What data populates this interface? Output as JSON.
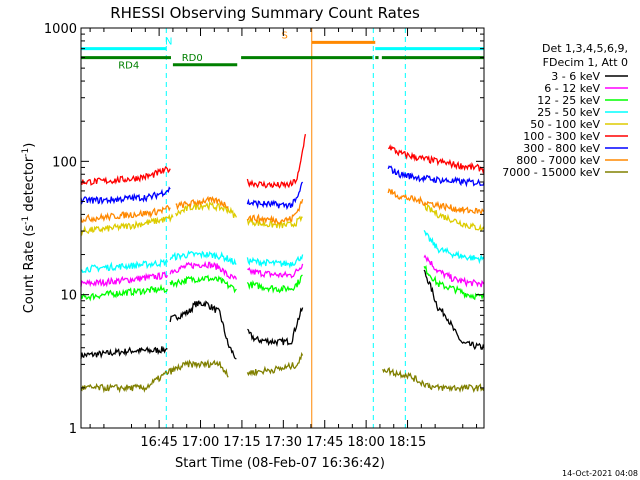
{
  "chart_data": {
    "type": "line",
    "title": "RHESSI Observing Summary Count Rates",
    "xlabel": "Start Time (08-Feb-07 16:36:42)",
    "ylabel_parts": [
      "Count Rate (s",
      "-1",
      " detector",
      "-1",
      ")"
    ],
    "ylabel": "Count Rate (s-1 detector-1)",
    "y_scale": "log",
    "ylim": [
      1,
      1000
    ],
    "y_ticks": [
      {
        "value": 1,
        "label": "1"
      },
      {
        "value": 10,
        "label": "10"
      },
      {
        "value": 100,
        "label": "100"
      },
      {
        "value": 1000,
        "label": "1000"
      }
    ],
    "xlim_minutes": [
      16.7,
      162.7
    ],
    "x_ticks": [
      {
        "minute": 45,
        "label": "16:45"
      },
      {
        "minute": 60,
        "label": "17:00"
      },
      {
        "minute": 75,
        "label": "17:15"
      },
      {
        "minute": 90,
        "label": "17:30"
      },
      {
        "minute": 105,
        "label": "17:45"
      },
      {
        "minute": 120,
        "label": "18:00"
      },
      {
        "minute": 135,
        "label": "18:15"
      }
    ],
    "legend_header": [
      "Det 1,3,4,5,6,9,",
      "FDecim 1, Att 0"
    ],
    "legend_position": "right",
    "series": [
      {
        "name": "3 - 6 keV",
        "color": "#000000",
        "segments": [
          [
            [
              16.7,
              3.5
            ],
            [
              25,
              3.6
            ],
            [
              35,
              3.8
            ],
            [
              42,
              3.8
            ],
            [
              48,
              3.9
            ]
          ],
          [
            [
              49,
              6.5
            ],
            [
              56,
              7.5
            ],
            [
              58,
              8.5
            ],
            [
              62,
              8.6
            ],
            [
              67,
              7.3
            ],
            [
              70,
              4.2
            ]
          ],
          [
            [
              70,
              4.2
            ],
            [
              73,
              3.3
            ]
          ],
          [
            [
              77,
              5.2
            ],
            [
              80,
              4.6
            ],
            [
              84,
              4.5
            ],
            [
              89,
              4.4
            ],
            [
              93,
              4.5
            ],
            [
              95,
              6.2
            ],
            [
              97,
              8
            ]
          ],
          [
            [
              141,
              15
            ],
            [
              143,
              12
            ],
            [
              146,
              8
            ],
            [
              149,
              7
            ],
            [
              152,
              5.3
            ],
            [
              155,
              4.3
            ],
            [
              162.7,
              4
            ]
          ]
        ]
      },
      {
        "name": "6 - 12 keV",
        "color": "#ff00ff",
        "segments": [
          [
            [
              16.7,
              12
            ],
            [
              25,
              12.4
            ],
            [
              35,
              13
            ],
            [
              42,
              13.5
            ],
            [
              48,
              14
            ]
          ],
          [
            [
              49,
              15
            ],
            [
              56,
              16.5
            ],
            [
              62,
              17
            ],
            [
              67,
              16
            ],
            [
              70,
              13.8
            ],
            [
              73,
              13
            ]
          ],
          [
            [
              77,
              15
            ],
            [
              82,
              14.5
            ],
            [
              89,
              14
            ],
            [
              93,
              14
            ],
            [
              95,
              15
            ],
            [
              97,
              17
            ]
          ],
          [
            [
              141,
              20
            ],
            [
              146,
              15
            ],
            [
              152,
              13
            ],
            [
              157,
              12.3
            ],
            [
              162.7,
              12
            ]
          ]
        ]
      },
      {
        "name": "12 - 25 keV",
        "color": "#00ff00",
        "segments": [
          [
            [
              16.7,
              9.5
            ],
            [
              25,
              10
            ],
            [
              35,
              10.5
            ],
            [
              42,
              10.8
            ],
            [
              48,
              11
            ]
          ],
          [
            [
              49,
              12
            ],
            [
              56,
              13
            ],
            [
              62,
              13.3
            ],
            [
              67,
              12.8
            ],
            [
              70,
              11.7
            ],
            [
              73,
              11
            ]
          ],
          [
            [
              77,
              12
            ],
            [
              82,
              11.5
            ],
            [
              89,
              11
            ],
            [
              93,
              11.2
            ],
            [
              95,
              12
            ],
            [
              97,
              14
            ]
          ],
          [
            [
              141,
              16
            ],
            [
              146,
              12
            ],
            [
              152,
              11
            ],
            [
              157,
              10
            ],
            [
              162.7,
              9.5
            ]
          ]
        ]
      },
      {
        "name": "25 - 50 keV",
        "color": "#00ffff",
        "segments": [
          [
            [
              16.7,
              15.5
            ],
            [
              25,
              16
            ],
            [
              35,
              16.5
            ],
            [
              42,
              17
            ],
            [
              48,
              17.5
            ]
          ],
          [
            [
              49,
              19
            ],
            [
              56,
              20
            ],
            [
              62,
              20
            ],
            [
              67,
              19.5
            ],
            [
              70,
              18.6
            ],
            [
              73,
              17
            ]
          ],
          [
            [
              77,
              18
            ],
            [
              82,
              17.5
            ],
            [
              89,
              17
            ],
            [
              93,
              17.2
            ],
            [
              95,
              18
            ],
            [
              97,
              20
            ]
          ],
          [
            [
              141,
              29
            ],
            [
              146,
              22
            ],
            [
              152,
              20
            ],
            [
              157,
              19
            ],
            [
              162.7,
              18.5
            ]
          ]
        ]
      },
      {
        "name": "50 - 100 keV",
        "color": "#ddcc00",
        "segments": [
          [
            [
              16.7,
              30
            ],
            [
              25,
              31
            ],
            [
              35,
              33
            ],
            [
              42,
              35
            ],
            [
              48,
              37
            ],
            [
              50,
              38
            ]
          ],
          [
            [
              51,
              40
            ],
            [
              56,
              45
            ],
            [
              62,
              47
            ],
            [
              67,
              45
            ],
            [
              70,
              43.7
            ],
            [
              73,
              38
            ]
          ],
          [
            [
              77,
              36
            ],
            [
              82,
              34
            ],
            [
              89,
              33
            ],
            [
              93,
              33.5
            ],
            [
              95,
              35
            ],
            [
              97,
              38
            ]
          ],
          [
            [
              141,
              46
            ],
            [
              146,
              40
            ],
            [
              152,
              36
            ],
            [
              157,
              33
            ],
            [
              162.7,
              31
            ]
          ]
        ]
      },
      {
        "name": "100 - 300 keV",
        "color": "#ff0000",
        "segments": [
          [
            [
              16.7,
              70
            ],
            [
              25,
              71
            ],
            [
              35,
              74
            ],
            [
              42,
              78
            ],
            [
              46,
              84
            ],
            [
              49,
              88
            ]
          ],
          [
            [
              77,
              70
            ],
            [
              82,
              67
            ],
            [
              89,
              66
            ],
            [
              93,
              67
            ],
            [
              95,
              74
            ],
            [
              96,
              90
            ],
            [
              97,
              120
            ],
            [
              98,
              160
            ]
          ],
          [
            [
              128,
              130
            ],
            [
              132,
              115
            ],
            [
              140,
              105
            ],
            [
              148,
              98
            ],
            [
              155,
              92
            ],
            [
              162.7,
              88
            ]
          ]
        ]
      },
      {
        "name": "300 - 800 keV",
        "color": "#0000ff",
        "segments": [
          [
            [
              16.7,
              51
            ],
            [
              25,
              51
            ],
            [
              35,
              53
            ],
            [
              42,
              54
            ],
            [
              46,
              58
            ],
            [
              49,
              62
            ]
          ],
          [
            [
              77,
              49
            ],
            [
              82,
              48
            ],
            [
              89,
              47
            ],
            [
              93,
              47
            ],
            [
              95,
              52
            ],
            [
              97,
              70
            ]
          ],
          [
            [
              128,
              90
            ],
            [
              132,
              80
            ],
            [
              140,
              75
            ],
            [
              148,
              72
            ],
            [
              155,
              70
            ],
            [
              162.7,
              69
            ]
          ]
        ]
      },
      {
        "name": "800 - 7000 keV",
        "color": "#ff8800",
        "segments": [
          [
            [
              16.7,
              37
            ],
            [
              25,
              38
            ],
            [
              35,
              40
            ],
            [
              42,
              41
            ],
            [
              46,
              43
            ],
            [
              49,
              45
            ]
          ],
          [
            [
              51,
              46
            ],
            [
              56,
              48
            ],
            [
              62,
              51
            ],
            [
              67,
              50
            ],
            [
              70,
              46
            ]
          ],
          [
            [
              77,
              38
            ],
            [
              82,
              37
            ],
            [
              89,
              36
            ],
            [
              93,
              37
            ],
            [
              95,
              42
            ],
            [
              97,
              52
            ]
          ],
          [
            [
              128,
              60
            ],
            [
              132,
              55
            ],
            [
              140,
              50
            ],
            [
              148,
              46
            ],
            [
              155,
              43
            ],
            [
              162.7,
              42
            ]
          ]
        ]
      },
      {
        "name": "7000 - 15000 keV",
        "color": "#808000",
        "segments": [
          [
            [
              16.7,
              2.0
            ],
            [
              30,
              2.0
            ],
            [
              40,
              2.0
            ],
            [
              48,
              2.6
            ],
            [
              55,
              3.0
            ],
            [
              62,
              3.0
            ],
            [
              67,
              3.1
            ],
            [
              70,
              2.4
            ]
          ],
          [
            [
              77,
              2.6
            ],
            [
              84,
              2.7
            ],
            [
              90,
              2.8
            ],
            [
              95,
              3.0
            ],
            [
              97,
              3.5
            ]
          ],
          [
            [
              126,
              2.8
            ],
            [
              130,
              2.6
            ],
            [
              135,
              2.5
            ],
            [
              140,
              2.2
            ],
            [
              145,
              2.0
            ],
            [
              150,
              2.0
            ],
            [
              155,
              2.0
            ],
            [
              162.7,
              2.0
            ]
          ]
        ]
      }
    ],
    "events": [
      {
        "name": "N",
        "color": "#00ffff",
        "y_level": 700,
        "label_minute": 48.5,
        "segments": [
          [
            16.7,
            47.6
          ],
          [
            123.3,
            162.7
          ]
        ]
      },
      {
        "name": "S",
        "color": "#ff8800",
        "y_level": 780,
        "label_minute": 90.5,
        "segments": [
          [
            100.3,
            123.3
          ]
        ]
      },
      {
        "name": "RD4",
        "color": "#008000",
        "y_level": 600,
        "label_minute": 34,
        "segments": [
          [
            16.7,
            49.3
          ],
          [
            123.3,
            124.5
          ],
          [
            125.7,
            162.7
          ]
        ]
      },
      {
        "name": "RD0",
        "color": "#008000",
        "y_level": 530,
        "label_minute": 57,
        "segments": [
          [
            50,
            73.3
          ]
        ]
      },
      {
        "name": "",
        "color": "#008000",
        "y_level": 600,
        "label_minute": null,
        "segments": [
          [
            74.7,
            122.3
          ]
        ]
      }
    ],
    "vertical_markers": [
      {
        "minute": 47.6,
        "color": "#00ffff",
        "style": "dashed"
      },
      {
        "minute": 122.6,
        "color": "#00ffff",
        "style": "dashed"
      },
      {
        "minute": 134.2,
        "color": "#00ffff",
        "style": "dashed"
      },
      {
        "minute": 100.3,
        "color": "#ff8800",
        "style": "solid"
      }
    ],
    "footer_timestamp": "14-Oct-2021 04:08"
  }
}
